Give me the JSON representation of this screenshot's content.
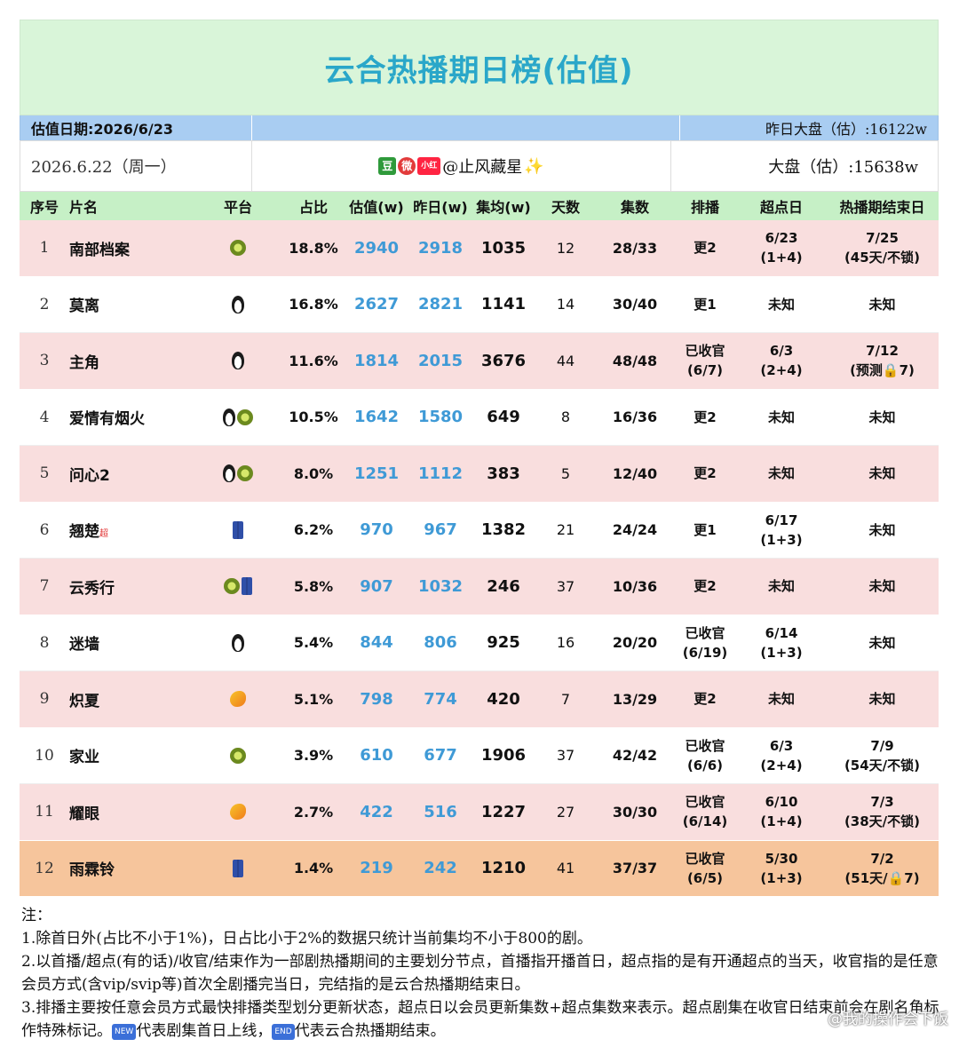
{
  "title": "云合热播期日榜(估值)",
  "info": {
    "date_label": "估值日期:2026/6/23",
    "yesterday_total": "昨日大盘（估）:16122w",
    "day": "2026.6.22（周一）",
    "badges": [
      "豆",
      "微",
      "小红书"
    ],
    "author": "@止风藏星",
    "sparkle": "✨",
    "total": "大盘（估）:15638w"
  },
  "headers": [
    "序号",
    "片名",
    "平台",
    "占比",
    "估值(w)",
    "昨日(w)",
    "集均(w)",
    "天数",
    "集数",
    "排播",
    "超点日",
    "热播期结束日"
  ],
  "rows": [
    {
      "no": "1",
      "name": "南部档案",
      "sup": "",
      "platforms": [
        "kiwi"
      ],
      "share": "18.8%",
      "est": "2940",
      "yest": "2918",
      "avg": "1035",
      "days": "12",
      "eps": "28/33",
      "sched": [
        "更2"
      ],
      "peak": [
        "6/23",
        "(1+4)"
      ],
      "end": [
        "7/25",
        "(45天/不锁)"
      ],
      "bg": "pink"
    },
    {
      "no": "2",
      "name": "莫离",
      "sup": "",
      "platforms": [
        "penguin"
      ],
      "share": "16.8%",
      "est": "2627",
      "yest": "2821",
      "avg": "1141",
      "days": "14",
      "eps": "30/40",
      "sched": [
        "更1"
      ],
      "peak": [
        "未知"
      ],
      "end": [
        "未知"
      ],
      "bg": "white"
    },
    {
      "no": "3",
      "name": "主角",
      "sup": "",
      "platforms": [
        "penguin"
      ],
      "share": "11.6%",
      "est": "1814",
      "yest": "2015",
      "avg": "3676",
      "days": "44",
      "eps": "48/48",
      "sched": [
        "已收官",
        "(6/7)"
      ],
      "peak": [
        "6/3",
        "(2+4)"
      ],
      "end": [
        "7/12",
        "(预测🔒7)"
      ],
      "bg": "pink"
    },
    {
      "no": "4",
      "name": "爱情有烟火",
      "sup": "",
      "platforms": [
        "penguin",
        "kiwi"
      ],
      "share": "10.5%",
      "est": "1642",
      "yest": "1580",
      "avg": "649",
      "days": "8",
      "eps": "16/36",
      "sched": [
        "更2"
      ],
      "peak": [
        "未知"
      ],
      "end": [
        "未知"
      ],
      "bg": "white"
    },
    {
      "no": "5",
      "name": "问心2",
      "sup": "",
      "platforms": [
        "penguin",
        "kiwi"
      ],
      "share": "8.0%",
      "est": "1251",
      "yest": "1112",
      "avg": "383",
      "days": "5",
      "eps": "12/40",
      "sched": [
        "更2"
      ],
      "peak": [
        "未知"
      ],
      "end": [
        "未知"
      ],
      "bg": "pink"
    },
    {
      "no": "6",
      "name": "翘楚",
      "sup": "超",
      "platforms": [
        "jeans"
      ],
      "share": "6.2%",
      "est": "970",
      "yest": "967",
      "avg": "1382",
      "days": "21",
      "eps": "24/24",
      "sched": [
        "更1"
      ],
      "peak": [
        "6/17",
        "(1+3)"
      ],
      "end": [
        "未知"
      ],
      "bg": "white"
    },
    {
      "no": "7",
      "name": "云秀行",
      "sup": "",
      "platforms": [
        "kiwi",
        "jeans"
      ],
      "share": "5.8%",
      "est": "907",
      "yest": "1032",
      "avg": "246",
      "days": "37",
      "eps": "10/36",
      "sched": [
        "更2"
      ],
      "peak": [
        "未知"
      ],
      "end": [
        "未知"
      ],
      "bg": "pink"
    },
    {
      "no": "8",
      "name": "迷墙",
      "sup": "",
      "platforms": [
        "penguin"
      ],
      "share": "5.4%",
      "est": "844",
      "yest": "806",
      "avg": "925",
      "days": "16",
      "eps": "20/20",
      "sched": [
        "已收官",
        "(6/19)"
      ],
      "peak": [
        "6/14",
        "(1+3)"
      ],
      "end": [
        "未知"
      ],
      "bg": "white"
    },
    {
      "no": "9",
      "name": "炽夏",
      "sup": "",
      "platforms": [
        "mango"
      ],
      "share": "5.1%",
      "est": "798",
      "yest": "774",
      "avg": "420",
      "days": "7",
      "eps": "13/29",
      "sched": [
        "更2"
      ],
      "peak": [
        "未知"
      ],
      "end": [
        "未知"
      ],
      "bg": "pink"
    },
    {
      "no": "10",
      "name": "家业",
      "sup": "",
      "platforms": [
        "kiwi"
      ],
      "share": "3.9%",
      "est": "610",
      "yest": "677",
      "avg": "1906",
      "days": "37",
      "eps": "42/42",
      "sched": [
        "已收官",
        "(6/6)"
      ],
      "peak": [
        "6/3",
        "(2+4)"
      ],
      "end": [
        "7/9",
        "(54天/不锁)"
      ],
      "bg": "white"
    },
    {
      "no": "11",
      "name": "耀眼",
      "sup": "",
      "platforms": [
        "mango"
      ],
      "share": "2.7%",
      "est": "422",
      "yest": "516",
      "avg": "1227",
      "days": "27",
      "eps": "30/30",
      "sched": [
        "已收官",
        "(6/14)"
      ],
      "peak": [
        "6/10",
        "(1+4)"
      ],
      "end": [
        "7/3",
        "(38天/不锁)"
      ],
      "bg": "pink"
    },
    {
      "no": "12",
      "name": "雨霖铃",
      "sup": "",
      "platforms": [
        "jeans"
      ],
      "share": "1.4%",
      "est": "219",
      "yest": "242",
      "avg": "1210",
      "days": "41",
      "eps": "37/37",
      "sched": [
        "已收官",
        "(6/5)"
      ],
      "peak": [
        "5/30",
        "(1+3)"
      ],
      "end": [
        "7/2",
        "(51天/🔒7)"
      ],
      "bg": "orange"
    }
  ],
  "notes": {
    "title": "注：",
    "n1": "1.除首日外(占比不小于1%)，日占比小于2%的数据只统计当前集均不小于800的剧。",
    "n2": "2.以首播/超点(有的话)/收官/结束作为一部剧热播期间的主要划分节点，首播指开播首日，超点指的是有开通超点的当天，收官指的是任意会员方式(含vip/svip等)首次全剧播完当日，完结指的是云合热播期结束日。",
    "n3a": "3.排播主要按任意会员方式最快排播类型划分更新状态，超点日以会员更新集数+超点集数来表示。超点剧集在收官日结束前会在剧名角标作特殊标记。",
    "tag_new": "NEW",
    "n3b": "代表剧集首日上线，",
    "tag_end": "END",
    "n3c": "代表云合热播期结束。"
  },
  "watermark": "@我的操作会下饭",
  "colors": {
    "title": "#2aa7c9",
    "value_blue": "#3f9ad6",
    "row_pink": "#f9dede",
    "row_orange": "#f6c59c",
    "header_green": "#c6f0c6",
    "info_blue": "#a9cdf2"
  }
}
